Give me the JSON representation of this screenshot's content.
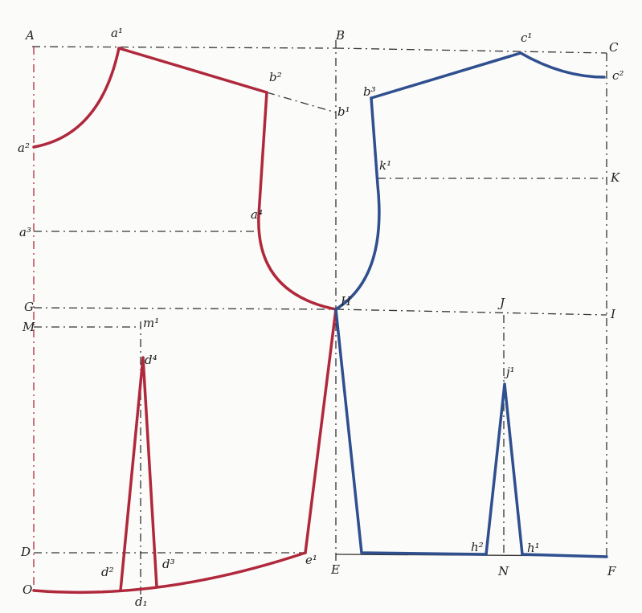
{
  "points": [
    "A",
    "a¹",
    "B",
    "c¹",
    "C",
    "b²",
    "b³",
    "b¹",
    "c²",
    "a²",
    "k¹",
    "K",
    "a⁴",
    "a³",
    "G",
    "H",
    "J",
    "I",
    "M",
    "m¹",
    "d⁴",
    "j¹",
    "D",
    "d²",
    "d³",
    "e¹",
    "E",
    "h²",
    "N",
    "h¹",
    "F",
    "O",
    "d₁"
  ]
}
